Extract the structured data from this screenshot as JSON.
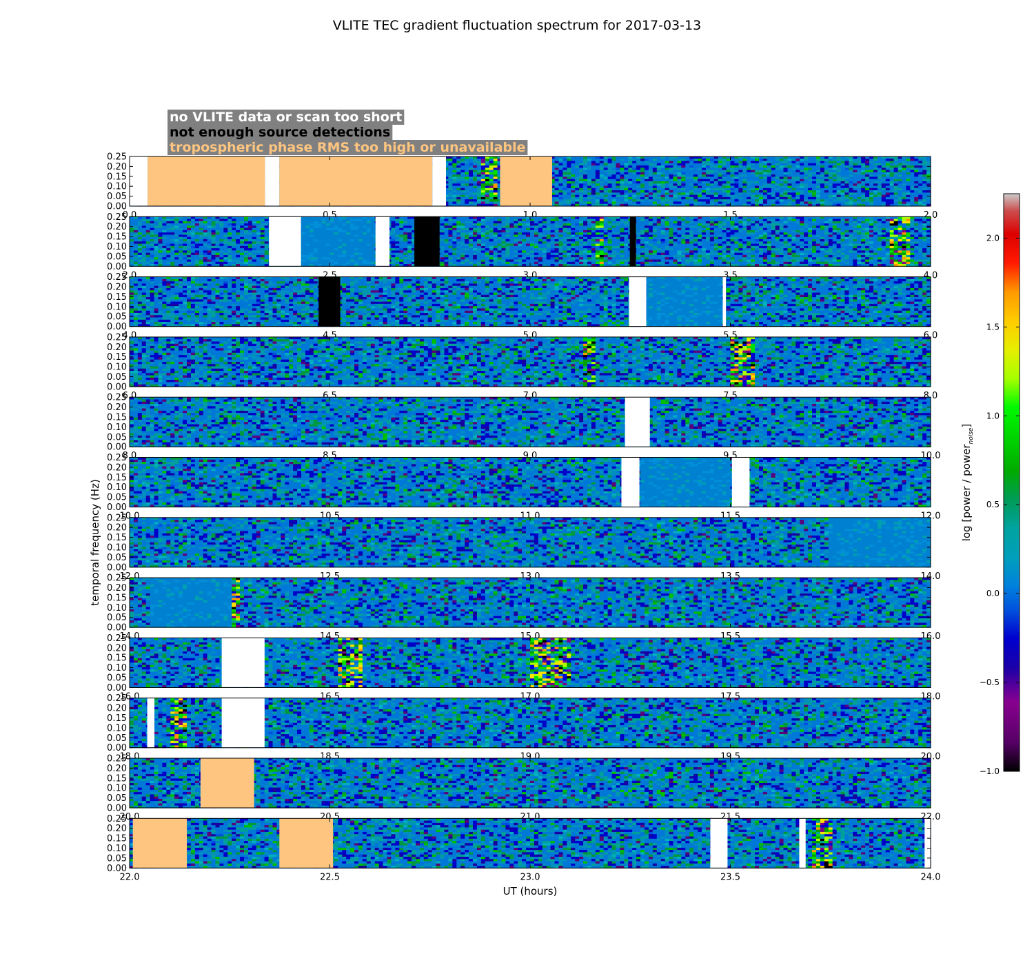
{
  "chart_data": {
    "type": "heatmap",
    "title": "VLITE TEC gradient fluctuation spectrum for 2017-03-13",
    "xlabel": "UT (hours)",
    "ylabel": "temporal frequency (Hz)",
    "colorbar_label_main": "log [power / power",
    "colorbar_label_sub": "noise",
    "colorbar_label_close": "]",
    "colorbar_range": [
      -1.0,
      2.25
    ],
    "colorbar_ticks": [
      "−1.0",
      "−0.5",
      "0.0",
      "0.5",
      "1.0",
      "1.5",
      "2.0"
    ],
    "colormap": "nipy_spectral",
    "y_range": [
      0.0,
      0.25
    ],
    "y_ticks": [
      "0.00",
      "0.05",
      "0.10",
      "0.15",
      "0.20",
      "0.25"
    ],
    "legend": [
      {
        "text": "no VLITE data or scan too short",
        "color": "#ffffff"
      },
      {
        "text": "not enough source detections",
        "color": "#000000"
      },
      {
        "text": "tropospheric phase RMS too high or unavailable",
        "color": "#fdc57f"
      }
    ],
    "legend_background": "#808080",
    "flag_colors": {
      "nodata": "#ffffff",
      "detect": "#000000",
      "tropo": "#fdc57f"
    },
    "rows": [
      {
        "range": [
          0,
          2
        ],
        "ticks": [
          "0.0",
          "0.5",
          "1.0",
          "1.5",
          "2.0"
        ],
        "flags": [
          {
            "start": 0.0,
            "end": 0.045,
            "type": "nodata"
          },
          {
            "start": 0.045,
            "end": 0.338,
            "type": "tropo"
          },
          {
            "start": 0.338,
            "end": 0.374,
            "type": "nodata"
          },
          {
            "start": 0.374,
            "end": 0.756,
            "type": "tropo"
          },
          {
            "start": 0.756,
            "end": 0.79,
            "type": "nodata"
          },
          {
            "start": 0.925,
            "end": 1.055,
            "type": "tropo"
          }
        ],
        "quiet": [],
        "active": [
          [
            0.88,
            0.92
          ]
        ]
      },
      {
        "range": [
          2,
          4
        ],
        "ticks": [
          "2.0",
          "2.5",
          "3.0",
          "3.5",
          "4.0"
        ],
        "flags": [
          {
            "start": 2.348,
            "end": 2.428,
            "type": "nodata"
          },
          {
            "start": 2.614,
            "end": 2.649,
            "type": "nodata"
          },
          {
            "start": 2.711,
            "end": 2.774,
            "type": "detect"
          },
          {
            "start": 3.249,
            "end": 3.264,
            "type": "detect"
          }
        ],
        "quiet": [
          [
            2.428,
            2.614
          ]
        ],
        "active": [
          [
            3.16,
            3.18
          ],
          [
            3.9,
            3.95
          ]
        ]
      },
      {
        "range": [
          4,
          6
        ],
        "ticks": [
          "4.0",
          "4.5",
          "5.0",
          "5.5",
          "6.0"
        ],
        "flags": [
          {
            "start": 4.472,
            "end": 4.526,
            "type": "detect"
          },
          {
            "start": 5.247,
            "end": 5.29,
            "type": "nodata"
          },
          {
            "start": 5.481,
            "end": 5.489,
            "type": "nodata"
          }
        ],
        "quiet": [
          [
            5.29,
            5.481
          ]
        ],
        "active": []
      },
      {
        "range": [
          6,
          8
        ],
        "ticks": [
          "6.0",
          "6.5",
          "7.0",
          "7.5",
          "8.0"
        ],
        "flags": [],
        "quiet": [],
        "active": [
          [
            7.13,
            7.16
          ],
          [
            7.5,
            7.56
          ]
        ]
      },
      {
        "range": [
          8,
          10
        ],
        "ticks": [
          "8.0",
          "8.5",
          "9.0",
          "9.5",
          "10.0"
        ],
        "flags": [
          {
            "start": 9.237,
            "end": 9.299,
            "type": "nodata"
          }
        ],
        "quiet": [],
        "active": []
      },
      {
        "range": [
          10,
          12
        ],
        "ticks": [
          "10.0",
          "10.5",
          "11.0",
          "11.5",
          "12.0"
        ],
        "flags": [
          {
            "start": 11.228,
            "end": 11.273,
            "type": "nodata"
          },
          {
            "start": 11.504,
            "end": 11.548,
            "type": "nodata"
          }
        ],
        "quiet": [
          [
            11.273,
            11.504
          ]
        ],
        "active": []
      },
      {
        "range": [
          12,
          14
        ],
        "ticks": [
          "12.0",
          "12.5",
          "13.0",
          "13.5",
          "14.0"
        ],
        "flags": [],
        "quiet": [
          [
            13.75,
            14.0
          ]
        ],
        "active": []
      },
      {
        "range": [
          14,
          16
        ],
        "ticks": [
          "14.0",
          "14.5",
          "15.0",
          "15.5",
          "16.0"
        ],
        "flags": [],
        "quiet": [
          [
            14.05,
            14.25
          ]
        ],
        "active": [
          [
            14.26,
            14.28
          ]
        ]
      },
      {
        "range": [
          16,
          18
        ],
        "ticks": [
          "16.0",
          "16.5",
          "17.0",
          "17.5",
          "18.0"
        ],
        "flags": [
          {
            "start": 16.23,
            "end": 16.337,
            "type": "nodata"
          }
        ],
        "quiet": [],
        "active": [
          [
            16.52,
            16.58
          ],
          [
            17.0,
            17.1
          ]
        ]
      },
      {
        "range": [
          18,
          20
        ],
        "ticks": [
          "18.0",
          "18.5",
          "19.0",
          "19.5",
          "20.0"
        ],
        "flags": [
          {
            "start": 18.044,
            "end": 18.062,
            "type": "nodata"
          },
          {
            "start": 18.23,
            "end": 18.337,
            "type": "nodata"
          }
        ],
        "quiet": [],
        "active": [
          [
            18.1,
            18.14
          ]
        ]
      },
      {
        "range": [
          20,
          22
        ],
        "ticks": [
          "20.0",
          "20.5",
          "21.0",
          "21.5",
          "22.0"
        ],
        "flags": [
          {
            "start": 20.177,
            "end": 20.311,
            "type": "tropo"
          }
        ],
        "quiet": [],
        "active": []
      },
      {
        "range": [
          22,
          24
        ],
        "ticks": [
          "22.0",
          "22.5",
          "23.0",
          "23.5",
          "24.0"
        ],
        "flags": [
          {
            "start": 22.008,
            "end": 22.143,
            "type": "tropo"
          },
          {
            "start": 22.374,
            "end": 22.508,
            "type": "tropo"
          },
          {
            "start": 23.45,
            "end": 23.493,
            "type": "nodata"
          },
          {
            "start": 23.672,
            "end": 23.688,
            "type": "nodata"
          },
          {
            "start": 23.985,
            "end": 24.0,
            "type": "nodata"
          }
        ],
        "quiet": [],
        "active": [
          [
            23.7,
            23.75
          ]
        ]
      }
    ]
  }
}
